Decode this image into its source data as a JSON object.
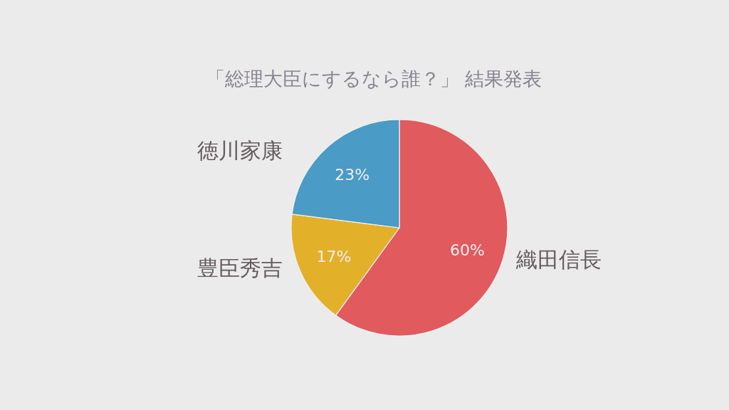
{
  "chart_data": {
    "type": "pie",
    "title": "「総理大臣にするなら誰？」 結果発表",
    "categories": [
      "織田信長",
      "豊臣秀吉",
      "徳川家康"
    ],
    "values": [
      60,
      17,
      23
    ],
    "colors": [
      "#e05a5e",
      "#e3b02a",
      "#4a9bc6"
    ],
    "value_labels": [
      "60%",
      "17%",
      "23%"
    ]
  }
}
